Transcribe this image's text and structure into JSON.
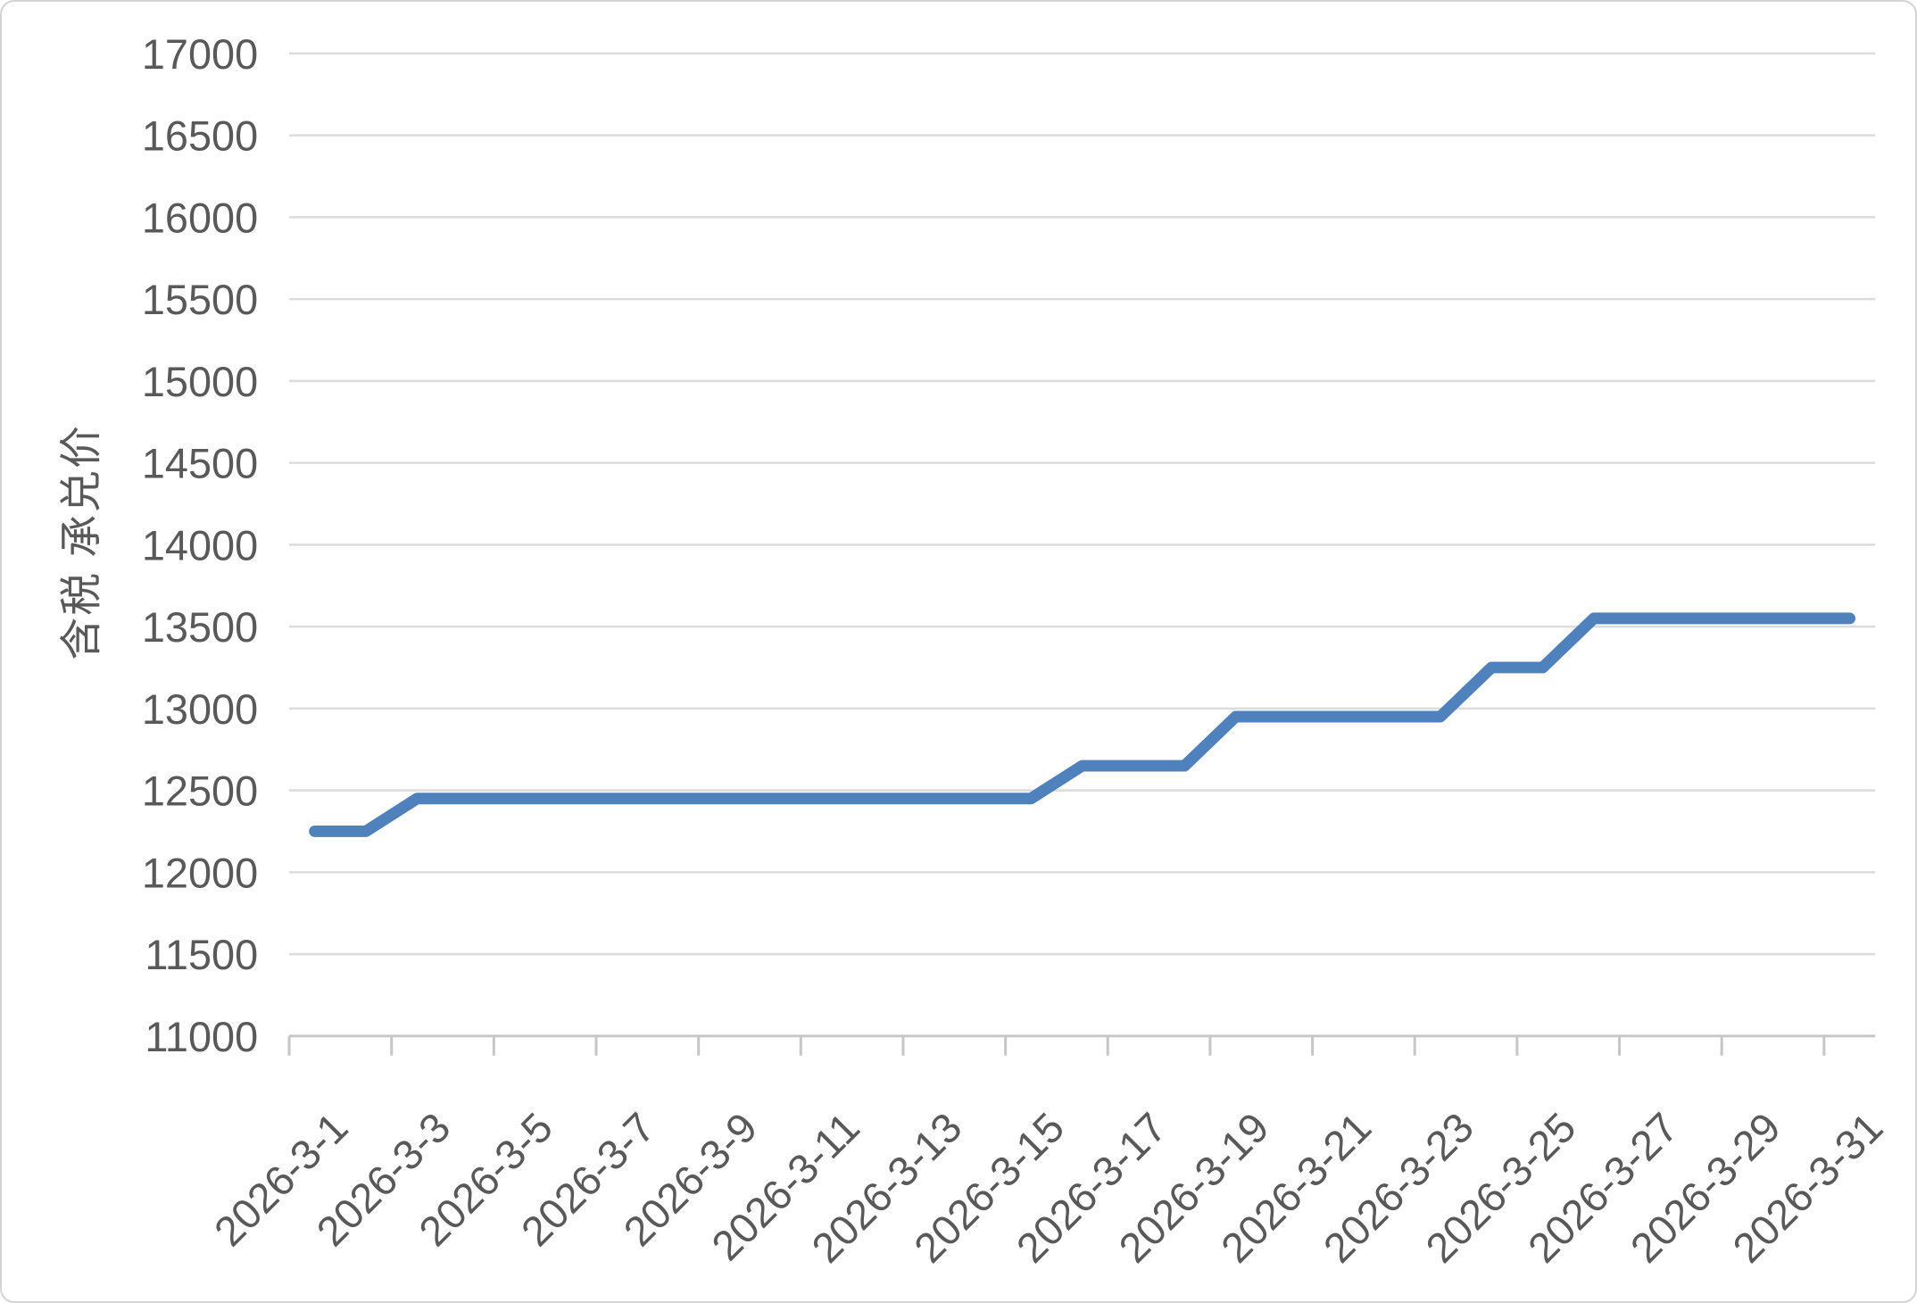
{
  "chart_data": {
    "type": "line",
    "title": "",
    "xlabel": "",
    "ylabel": "含税 承兑价",
    "categories": [
      "2026-3-1",
      "2026-3-2",
      "2026-3-3",
      "2026-3-4",
      "2026-3-5",
      "2026-3-6",
      "2026-3-7",
      "2026-3-8",
      "2026-3-9",
      "2026-3-10",
      "2026-3-11",
      "2026-3-12",
      "2026-3-13",
      "2026-3-14",
      "2026-3-15",
      "2026-3-16",
      "2026-3-17",
      "2026-3-18",
      "2026-3-19",
      "2026-3-20",
      "2026-3-21",
      "2026-3-22",
      "2026-3-23",
      "2026-3-24",
      "2026-3-25",
      "2026-3-26",
      "2026-3-27",
      "2026-3-28",
      "2026-3-29",
      "2026-3-30",
      "2026-3-31"
    ],
    "series": [
      {
        "name": "含税 承兑价",
        "values": [
          12250,
          12250,
          12450,
          12450,
          12450,
          12450,
          12450,
          12450,
          12450,
          12450,
          12450,
          12450,
          12450,
          12450,
          12450,
          12650,
          12650,
          12650,
          12950,
          12950,
          12950,
          12950,
          12950,
          13250,
          13250,
          13550,
          13550,
          13550,
          13550,
          13550,
          13550
        ]
      }
    ],
    "ylim": [
      11000,
      17000
    ],
    "ytick_step": 500,
    "y_tick_labels": [
      "11000",
      "11500",
      "12000",
      "12500",
      "13000",
      "13500",
      "14000",
      "14500",
      "15000",
      "15500",
      "16000",
      "16500",
      "17000"
    ],
    "x_tick_labels": [
      "2026-3-1",
      "2026-3-3",
      "2026-3-5",
      "2026-3-7",
      "2026-3-9",
      "2026-3-11",
      "2026-3-13",
      "2026-3-15",
      "2026-3-17",
      "2026-3-19",
      "2026-3-21",
      "2026-3-23",
      "2026-3-25",
      "2026-3-27",
      "2026-3-29",
      "2026-3-31"
    ],
    "x_tick_interval": 2,
    "grid": true,
    "legend": "none",
    "colors": {
      "line": "#4F81BD",
      "gridline": "#DCDCDC",
      "axis": "#C6C6C6",
      "tick_label": "#595959",
      "axis_title": "#595959",
      "background": "#FFFFFF"
    }
  }
}
